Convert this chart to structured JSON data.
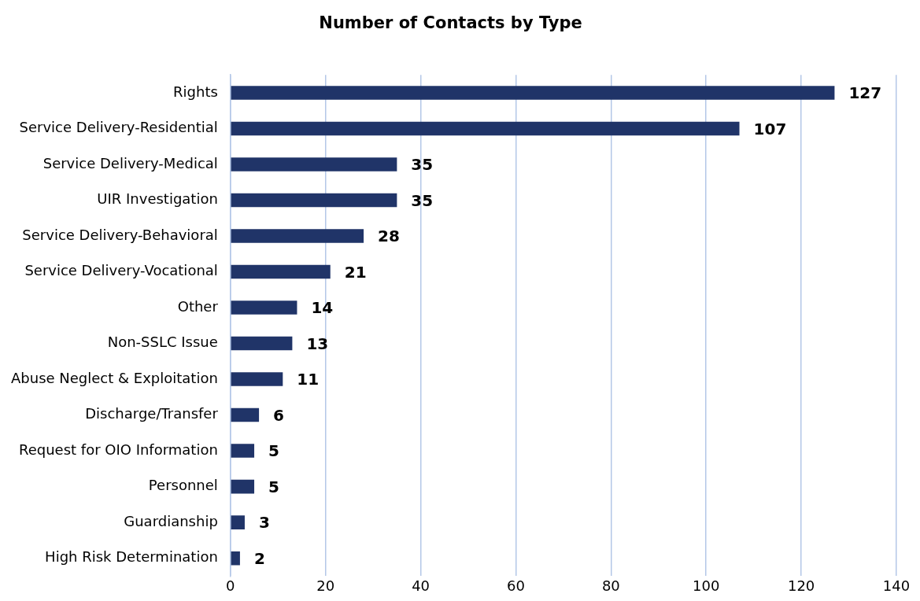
{
  "chart_data": {
    "type": "bar",
    "orientation": "horizontal",
    "title": "Number of Contacts by Type",
    "categories": [
      "Rights",
      "Service Delivery-Residential",
      "Service Delivery-Medical",
      "UIR Investigation",
      "Service Delivery-Behavioral",
      "Service Delivery-Vocational",
      "Other",
      "Non-SSLC Issue",
      "Abuse Neglect & Exploitation",
      "Discharge/Transfer",
      "Request for OIO Information",
      "Personnel",
      "Guardianship",
      "High Risk Determination"
    ],
    "values": [
      127,
      107,
      35,
      35,
      28,
      21,
      14,
      13,
      11,
      6,
      5,
      5,
      3,
      2
    ],
    "color": "#203468",
    "xlim": [
      0,
      140
    ],
    "xticks": [
      0,
      20,
      40,
      60,
      80,
      100,
      120,
      140
    ],
    "grid": "x",
    "data_labels": true,
    "legend": false
  }
}
